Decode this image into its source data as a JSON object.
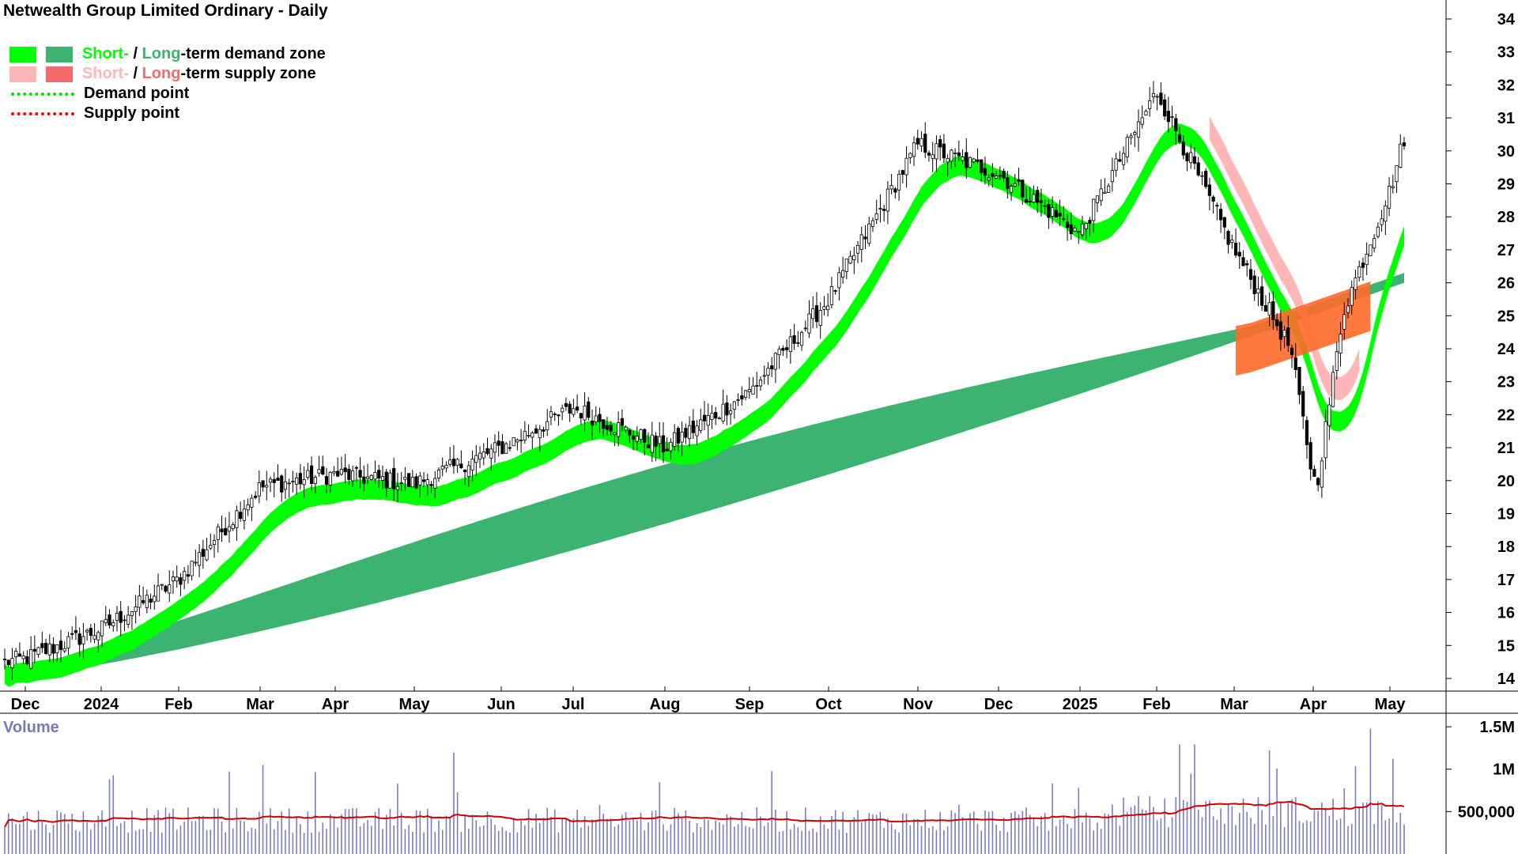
{
  "title": "Netwealth Group Limited Ordinary - Daily",
  "legend": {
    "demand_short": "Short-",
    "demand_sep": " / ",
    "demand_long": "Long",
    "demand_rest": "-term demand zone",
    "supply_short": "Short-",
    "supply_sep": " / ",
    "supply_long": "Long",
    "supply_rest": "-term supply zone",
    "demand_point": "Demand point",
    "supply_point": "Supply point"
  },
  "colors": {
    "short_demand": "#00ff00",
    "long_demand": "#3cb371",
    "short_supply": "#ffb6b6",
    "long_supply": "#ff6a2a",
    "demand_point": "#00dd00",
    "supply_point": "#ff0000",
    "volume_bar": "#7b7bc8",
    "volume_avg": "#cc0000",
    "volume_label": "#7777bb"
  },
  "chart_data": [
    {
      "type": "candlestick",
      "title": "Netwealth Group Limited Ordinary - Daily",
      "x_ticks": [
        "Dec",
        "2024",
        "Feb",
        "Mar",
        "Apr",
        "May",
        "Jun",
        "Jul",
        "Aug",
        "Sep",
        "Oct",
        "Nov",
        "Dec",
        "2025",
        "Feb",
        "Mar",
        "Apr",
        "May"
      ],
      "y_ticks": [
        14,
        15,
        16,
        17,
        18,
        19,
        20,
        21,
        22,
        23,
        24,
        25,
        26,
        27,
        28,
        29,
        30,
        31,
        32,
        33,
        34
      ],
      "ylim": [
        13.5,
        34.5
      ],
      "y_axis_side": "right",
      "grid": false,
      "legend_position": "top-left",
      "close_anchors": [
        [
          "Dec",
          14.6
        ],
        [
          "2024",
          15.5
        ],
        [
          "Feb",
          17.0
        ],
        [
          "Mar",
          19.8
        ],
        [
          "Apr",
          20.2
        ],
        [
          "May",
          19.9
        ],
        [
          "Jun",
          21.0
        ],
        [
          "Jul",
          22.2
        ],
        [
          "Aug",
          21.0
        ],
        [
          "Sep",
          22.7
        ],
        [
          "Oct",
          25.5
        ],
        [
          "Nov",
          30.2
        ],
        [
          "Dec",
          29.3
        ],
        [
          "2025",
          27.5
        ],
        [
          "Feb",
          31.8
        ],
        [
          "Mar",
          27.0
        ],
        [
          "Apr",
          22.8
        ],
        [
          "May",
          28.8
        ]
      ],
      "last_close": 30.4,
      "long_term_demand_zone": {
        "start": [
          14.0,
          14.2
        ],
        "end": [
          26.0,
          27.3
        ]
      },
      "short_term_demand_zone_peak": 31.0
    },
    {
      "type": "bar",
      "title": "Volume",
      "y_ticks": [
        "500,000",
        "1M",
        "1.5M"
      ],
      "y_tick_values": [
        500000,
        1000000,
        1500000
      ],
      "ylim": [
        0,
        1650000
      ],
      "average_volume": 450000,
      "series": [
        {
          "values": []
        },
        {
          "values": []
        }
      ]
    }
  ]
}
